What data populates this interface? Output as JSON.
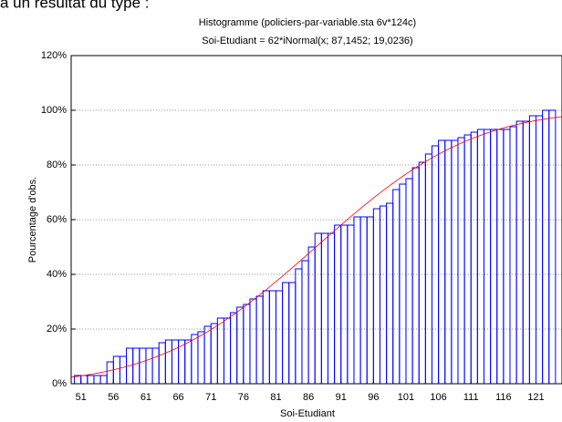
{
  "context_text": "à un résultat du type :",
  "chart_data": {
    "type": "histogram",
    "title": "Histogramme (policiers-par-variable.sta 6v*124c)",
    "subtitle": "Soi-Etudiant = 62*iNormal(x; 87,1452; 19,0236)",
    "xlabel": "Soi-Etudiant",
    "ylabel": "Pourcentage d'obs.",
    "bins": [
      50,
      51,
      52,
      53,
      54,
      55,
      56,
      57,
      58,
      59,
      60,
      61,
      62,
      63,
      64,
      65,
      66,
      67,
      68,
      69,
      70,
      71,
      72,
      73,
      74,
      75,
      76,
      77,
      78,
      79,
      80,
      81,
      82,
      83,
      84,
      85,
      86,
      87,
      88,
      89,
      90,
      91,
      92,
      93,
      94,
      95,
      96,
      97,
      98,
      99,
      100,
      101,
      102,
      103,
      104,
      105,
      106,
      107,
      108,
      109,
      110,
      111,
      112,
      113,
      114,
      115,
      116,
      117,
      118,
      119,
      120,
      121,
      122,
      123,
      124
    ],
    "values": [
      3,
      3,
      3,
      3,
      3,
      8,
      10,
      10,
      13,
      13,
      13,
      13,
      13,
      15,
      16,
      16,
      16,
      16,
      18,
      19,
      21,
      22,
      24,
      24,
      26,
      28,
      29,
      31,
      32,
      34,
      34,
      34,
      37,
      37,
      42,
      45,
      50,
      55,
      55,
      55,
      58,
      58,
      58,
      61,
      61,
      61,
      64,
      65,
      66,
      71,
      73,
      75,
      79,
      81,
      84,
      87,
      89,
      89,
      89,
      90,
      91,
      92,
      93,
      93,
      93,
      93,
      93,
      94,
      96,
      96,
      98,
      98,
      100,
      100
    ],
    "color": "#0000ff",
    "fit": {
      "mean": 87.1452,
      "sd": 19.0236,
      "color": "#ff0000"
    },
    "xlim": [
      49.5,
      125
    ],
    "xticks": [
      51,
      56,
      61,
      66,
      71,
      76,
      81,
      86,
      91,
      96,
      101,
      106,
      111,
      116,
      121
    ],
    "ylim": [
      0,
      120
    ],
    "yticks": [
      {
        "value": 0,
        "label": "0%"
      },
      {
        "value": 20,
        "label": "20%"
      },
      {
        "value": 40,
        "label": "40%"
      },
      {
        "value": 60,
        "label": "60%"
      },
      {
        "value": 80,
        "label": "80%"
      },
      {
        "value": 100,
        "label": "100%"
      },
      {
        "value": 120,
        "label": "120%"
      }
    ],
    "grid": true
  }
}
